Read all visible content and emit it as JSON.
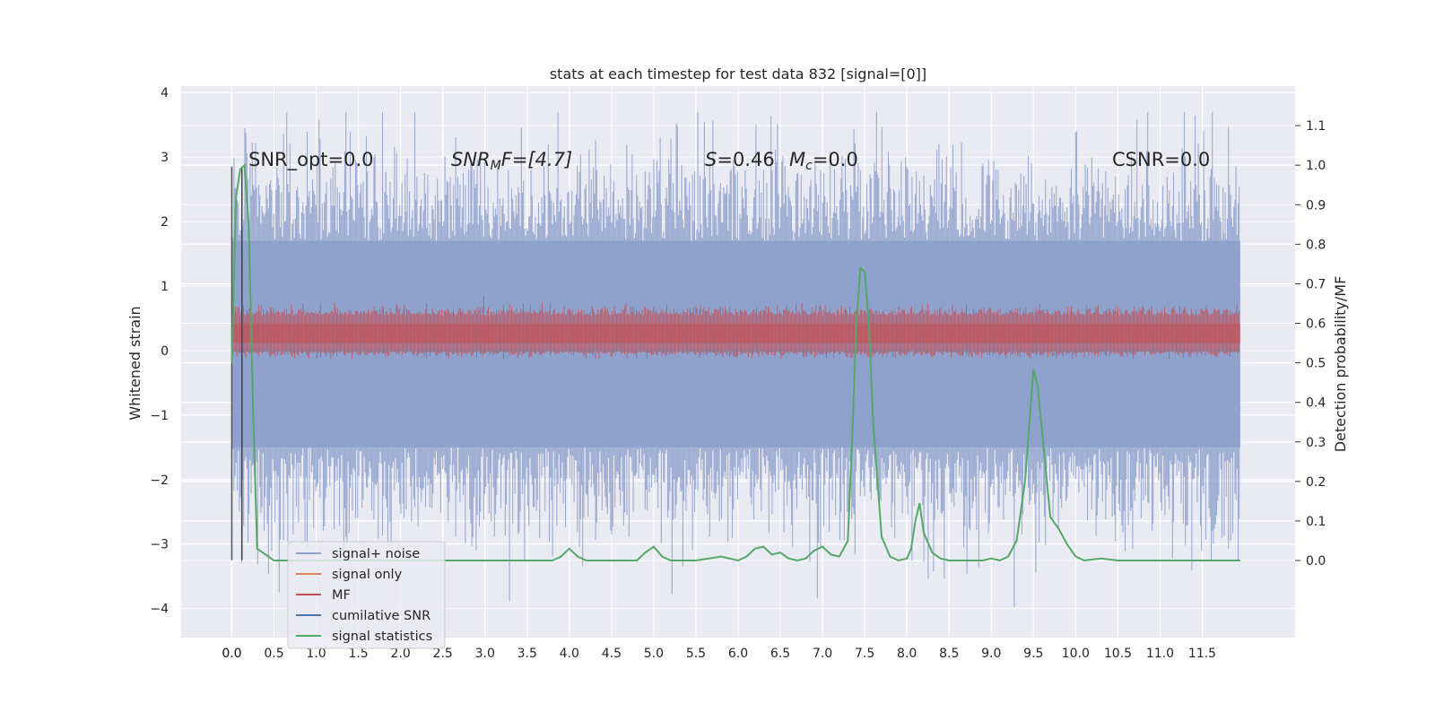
{
  "chart_data": {
    "type": "line",
    "title": "stats at each timestep for test data 832 [signal=[0]]",
    "xlabel": "",
    "ylabel": "Whitened strain",
    "y2label": "Detection probability/MF",
    "xlim": [
      -0.6,
      12.6
    ],
    "ylim": [
      -4.45,
      4.1
    ],
    "y2lim": [
      -0.195,
      1.2
    ],
    "x_ticks": [
      "0.0",
      "0.0",
      "0.5",
      "1.0",
      "1.5",
      "2.0",
      "2.5",
      "3.0",
      "3.5",
      "4.0",
      "4.5",
      "5.0",
      "5.5",
      "6.0",
      "6.5",
      "7.0",
      "7.5",
      "8.0",
      "8.5",
      "9.0",
      "9.5",
      "10.0",
      "10.5",
      "11.0",
      "11.5"
    ],
    "y_ticks": [
      4,
      3,
      2,
      1,
      0,
      -1,
      -2,
      -3,
      -4
    ],
    "y2_ticks": [
      1.1,
      1.0,
      0.9,
      0.8,
      0.7,
      0.6,
      0.5,
      0.4,
      0.3,
      0.2,
      0.1,
      0.0
    ],
    "grid": true,
    "legend_placement": "lower-left",
    "annotations": {
      "snr_opt": "SNR_opt=0.0",
      "snr_mf_prefix": "SNR",
      "snr_mf_sub": "M",
      "snr_mf_suffix": "F=[4.7]",
      "s_var": "S",
      "s_value": "=0.46",
      "mc_var": "M",
      "mc_sub": "c",
      "mc_value": "=0.0",
      "csnr": "CSNR=0.0"
    },
    "series": [
      {
        "name": "signal+ noise",
        "color": "#8da0cb",
        "kind": "noise band",
        "x_range": [
          0.0,
          11.95
        ],
        "typical_range": [
          -1.5,
          1.7
        ],
        "extremes": [
          -4.1,
          3.7
        ]
      },
      {
        "name": "signal only",
        "color": "#dd8452",
        "kind": "flat",
        "value": 0.0
      },
      {
        "name": "MF",
        "color": "#c44e52",
        "kind": "noise band",
        "axis": "right",
        "x_range": [
          0.0,
          11.95
        ],
        "typical_range": [
          0.53,
          0.62
        ],
        "extremes": [
          0.51,
          0.67
        ]
      },
      {
        "name": "cumilative SNR",
        "color": "#4c72b0",
        "kind": "flat",
        "value": 0.0
      },
      {
        "name": "signal statistics",
        "color": "#55a868",
        "axis": "right",
        "x": [
          0.0,
          0.05,
          0.1,
          0.15,
          0.2,
          0.25,
          0.3,
          0.5,
          1.0,
          2.0,
          3.0,
          3.8,
          3.9,
          4.0,
          4.1,
          4.2,
          4.5,
          4.8,
          4.9,
          5.0,
          5.1,
          5.2,
          5.5,
          5.8,
          6.0,
          6.1,
          6.2,
          6.3,
          6.4,
          6.5,
          6.6,
          6.7,
          6.8,
          6.9,
          7.0,
          7.1,
          7.2,
          7.3,
          7.35,
          7.4,
          7.45,
          7.5,
          7.55,
          7.6,
          7.7,
          7.8,
          7.9,
          8.0,
          8.05,
          8.1,
          8.15,
          8.2,
          8.3,
          8.4,
          8.5,
          8.7,
          8.9,
          9.0,
          9.1,
          9.2,
          9.3,
          9.4,
          9.5,
          9.55,
          9.6,
          9.7,
          9.8,
          9.9,
          10.0,
          10.1,
          10.3,
          10.5,
          10.8,
          11.0,
          11.5,
          11.95
        ],
        "values": [
          0.5,
          0.92,
          0.99,
          1.0,
          0.85,
          0.4,
          0.03,
          0.0,
          0.0,
          0.0,
          0.0,
          0.0,
          0.01,
          0.03,
          0.01,
          0.0,
          0.0,
          0.0,
          0.02,
          0.035,
          0.01,
          0.0,
          0.0,
          0.01,
          0.0,
          0.01,
          0.03,
          0.035,
          0.015,
          0.02,
          0.005,
          0.0,
          0.005,
          0.025,
          0.035,
          0.015,
          0.01,
          0.05,
          0.3,
          0.6,
          0.74,
          0.73,
          0.6,
          0.35,
          0.06,
          0.01,
          0.0,
          0.005,
          0.03,
          0.1,
          0.145,
          0.07,
          0.02,
          0.005,
          0.0,
          0.0,
          0.0,
          0.005,
          0.0,
          0.01,
          0.05,
          0.2,
          0.485,
          0.44,
          0.33,
          0.11,
          0.08,
          0.04,
          0.01,
          0.0,
          0.005,
          0.0,
          0.0,
          0.0,
          0.0,
          0.0
        ]
      }
    ],
    "vertical_lines": [
      {
        "x": 0.0,
        "y": [
          -3.25,
          2.85
        ],
        "color": "#555555"
      },
      {
        "x": 0.12,
        "y": [
          -3.25,
          2.85
        ],
        "color": "#444444"
      }
    ]
  }
}
